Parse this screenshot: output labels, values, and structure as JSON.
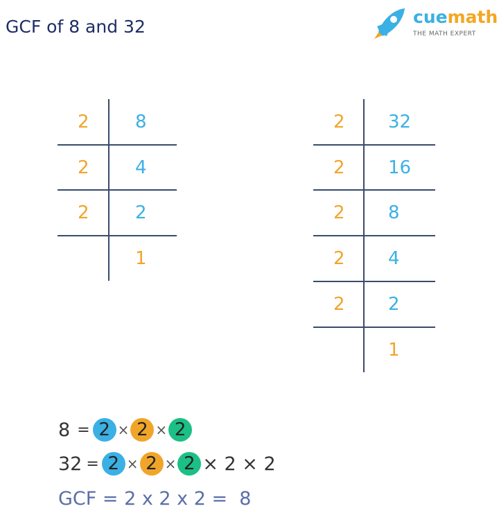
{
  "title": "GCF of 8 and 32",
  "logo": {
    "brand_cue": "cue",
    "brand_math": "math",
    "tagline": "THE MATH EXPERT",
    "icon": "rocket-icon"
  },
  "colors": {
    "orange": "#f0a52a",
    "blue": "#3bb0e4",
    "green": "#1cbf86",
    "navy": "#1f2d66"
  },
  "left_table": {
    "rows": [
      {
        "divisor": "2",
        "quotient": "8"
      },
      {
        "divisor": "2",
        "quotient": "4"
      },
      {
        "divisor": "2",
        "quotient": "2"
      },
      {
        "divisor": "",
        "quotient": "1"
      }
    ]
  },
  "right_table": {
    "rows": [
      {
        "divisor": "2",
        "quotient": "32"
      },
      {
        "divisor": "2",
        "quotient": "16"
      },
      {
        "divisor": "2",
        "quotient": "8"
      },
      {
        "divisor": "2",
        "quotient": "4"
      },
      {
        "divisor": "2",
        "quotient": "2"
      },
      {
        "divisor": "",
        "quotient": "1"
      }
    ]
  },
  "equations": {
    "line1": {
      "lhs": "8",
      "eq": "=",
      "factors": [
        "2",
        "2",
        "2"
      ],
      "times": "×"
    },
    "line2": {
      "lhs": "32",
      "eq": "=",
      "factors": [
        "2",
        "2",
        "2"
      ],
      "extra": "× 2 × 2",
      "times": "×"
    },
    "line3": "GCF = 2 x 2 x 2 =  8"
  }
}
